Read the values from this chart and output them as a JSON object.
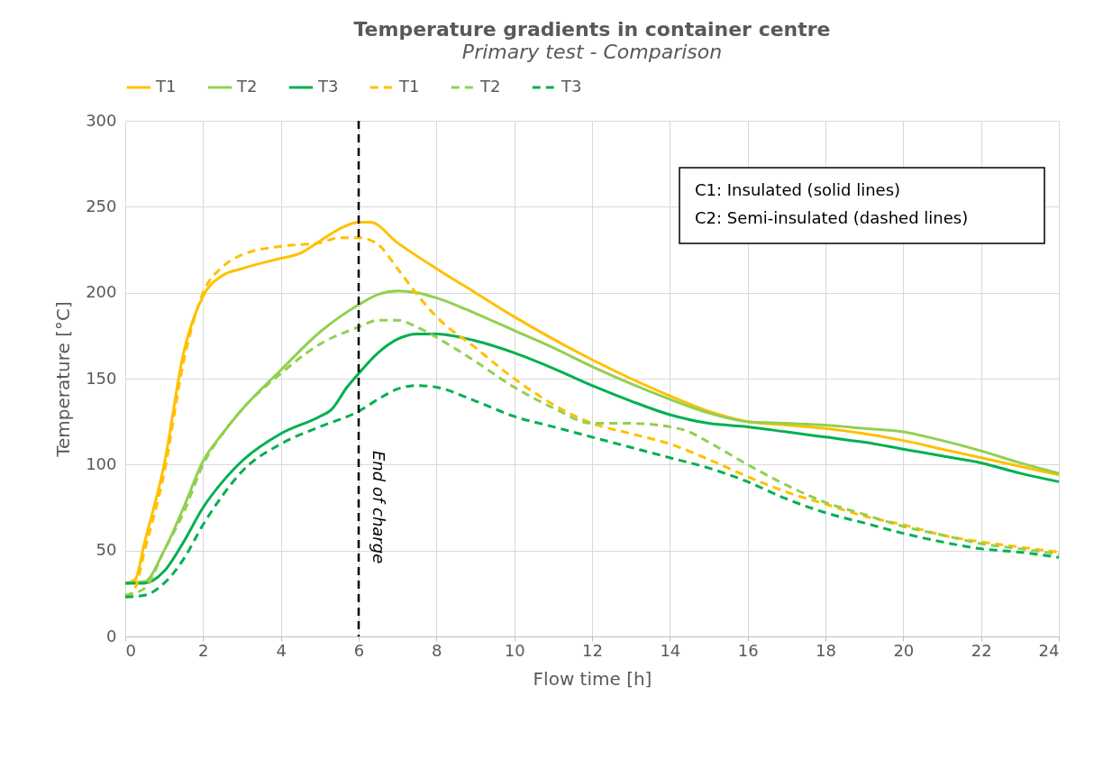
{
  "chart_data": {
    "type": "line",
    "title": "Temperature gradients in container centre",
    "subtitle": "Primary test - Comparison",
    "xlabel": "Flow time [h]",
    "ylabel": "Temperature [°C]",
    "xlim": [
      0,
      24
    ],
    "xticks": [
      0,
      2,
      4,
      6,
      8,
      10,
      12,
      14,
      16,
      18,
      20,
      22,
      24
    ],
    "ylim": [
      0,
      300
    ],
    "yticks": [
      0,
      50,
      100,
      150,
      200,
      250,
      300
    ],
    "grid": true,
    "legend": "top",
    "marker": "none",
    "series": [
      {
        "name": "T1",
        "color": "#ffc000",
        "line_style": "solid",
        "x": [
          0,
          0.25,
          0.5,
          1,
          1.5,
          2,
          2.5,
          3,
          4,
          4.5,
          5,
          5.5,
          6,
          6.3,
          7,
          8,
          9,
          10,
          11,
          12,
          13,
          14,
          15,
          16,
          17,
          18,
          19,
          20,
          21,
          22,
          23,
          24
        ],
        "values": [
          31,
          33,
          55,
          100,
          165,
          198,
          210,
          214,
          220,
          223,
          230,
          237,
          241,
          241,
          229,
          214,
          200,
          186,
          173,
          161,
          150,
          140,
          131,
          125,
          123,
          121,
          118,
          114,
          109,
          104,
          99,
          94
        ]
      },
      {
        "name": "T2",
        "color": "#92d050",
        "line_style": "solid",
        "x": [
          0,
          0.5,
          1,
          1.5,
          2,
          2.5,
          3,
          4,
          5,
          6,
          6.5,
          7,
          7.5,
          8,
          9,
          10,
          11,
          12,
          13,
          14,
          15,
          16,
          17,
          18,
          19,
          20,
          21,
          22,
          23,
          24
        ],
        "values": [
          31,
          32,
          50,
          75,
          102,
          118,
          132,
          155,
          177,
          193,
          199,
          201,
          200,
          197,
          188,
          178,
          168,
          157,
          147,
          138,
          130,
          125,
          124,
          123,
          121,
          119,
          114,
          108,
          101,
          95
        ]
      },
      {
        "name": "T3",
        "color": "#00b050",
        "line_style": "solid",
        "x": [
          0,
          0.5,
          1,
          1.5,
          2,
          2.5,
          3,
          4,
          5,
          5.3,
          5.7,
          6,
          6.5,
          7,
          7.5,
          8,
          9,
          10,
          11,
          12,
          13,
          14,
          15,
          16,
          17,
          18,
          19,
          20,
          21,
          22,
          23,
          24
        ],
        "values": [
          31,
          31,
          38,
          55,
          75,
          90,
          102,
          118,
          128,
          132,
          145,
          153,
          165,
          173,
          176,
          176,
          172,
          165,
          156,
          146,
          137,
          129,
          124,
          122,
          119,
          116,
          113,
          109,
          105,
          101,
          95,
          90
        ]
      },
      {
        "name": "T1",
        "color": "#ffc000",
        "line_style": "dashed",
        "x": [
          0,
          0.25,
          0.5,
          1,
          1.5,
          2,
          2.5,
          3,
          4,
          5,
          5.5,
          6,
          6.5,
          7,
          7.5,
          8,
          9,
          10,
          11,
          12,
          13,
          14,
          15,
          16,
          17,
          18,
          19,
          20,
          21,
          22,
          23,
          24
        ],
        "values": [
          23,
          28,
          50,
          95,
          160,
          200,
          215,
          222,
          227,
          229,
          232,
          232,
          228,
          214,
          199,
          186,
          168,
          150,
          135,
          124,
          118,
          112,
          103,
          93,
          84,
          77,
          70,
          65,
          59,
          55,
          52,
          49
        ]
      },
      {
        "name": "T2",
        "color": "#92d050",
        "line_style": "dashed",
        "x": [
          0,
          0.5,
          1,
          1.5,
          2,
          2.5,
          3,
          4,
          5,
          6,
          6.5,
          7,
          7.5,
          8,
          9,
          10,
          11,
          12,
          13,
          14,
          14.5,
          15,
          16,
          17,
          18,
          19,
          20,
          21,
          22,
          23,
          24
        ],
        "values": [
          24,
          28,
          50,
          72,
          100,
          118,
          132,
          153,
          170,
          180,
          184,
          184,
          180,
          174,
          160,
          145,
          133,
          124,
          124,
          122,
          119,
          113,
          100,
          88,
          78,
          71,
          64,
          59,
          54,
          51,
          48
        ]
      },
      {
        "name": "T3",
        "color": "#00b050",
        "line_style": "dashed",
        "x": [
          0,
          0.5,
          1,
          1.5,
          2,
          2.5,
          3,
          4,
          5,
          6,
          6.5,
          7,
          7.5,
          8,
          9,
          10,
          11,
          12,
          13,
          14,
          15,
          16,
          17,
          18,
          19,
          20,
          21,
          22,
          23,
          24
        ],
        "values": [
          23,
          24,
          31,
          45,
          65,
          82,
          96,
          112,
          122,
          131,
          138,
          144,
          146,
          145,
          137,
          128,
          122,
          116,
          110,
          104,
          98,
          90,
          80,
          72,
          66,
          60,
          55,
          51,
          49,
          46
        ]
      }
    ],
    "ref_lines": [
      {
        "axis": "x",
        "value": 6,
        "label": "End of charge",
        "color": "#000000",
        "line_style": "dashed"
      }
    ],
    "annotations": [
      "C1: Insulated (solid lines)",
      "C2: Semi-insulated (dashed lines)"
    ]
  }
}
